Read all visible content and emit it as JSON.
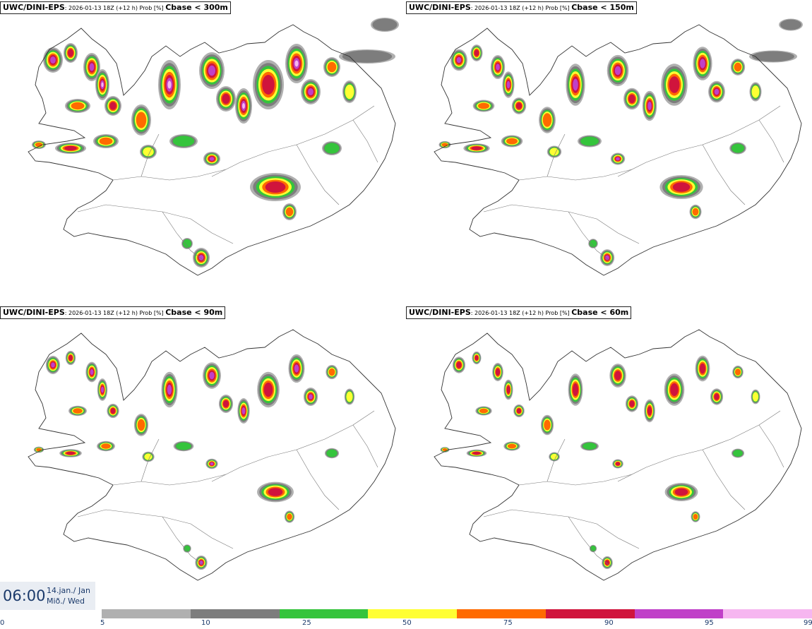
{
  "panels": [
    {
      "model": "UWC/DINI-EPS",
      "meta": ": 2026-01-13 18Z (+12 h) Prob [%] ",
      "threshold": "Cbase < 300m"
    },
    {
      "model": "UWC/DINI-EPS",
      "meta": ": 2026-01-13 18Z (+12 h) Prob [%] ",
      "threshold": "Cbase < 150m"
    },
    {
      "model": "UWC/DINI-EPS",
      "meta": ": 2026-01-13 18Z (+12 h) Prob [%] ",
      "threshold": "Cbase < 90m"
    },
    {
      "model": "UWC/DINI-EPS",
      "meta": ": 2026-01-13 18Z (+12 h) Prob [%] ",
      "threshold": "Cbase < 60m"
    }
  ],
  "time": {
    "clock": "06:00",
    "date_line1": "14.jan./ Jan",
    "date_line2": "Mið./ Wed"
  },
  "legend": {
    "labels": [
      "0",
      "5",
      "10",
      "25",
      "50",
      "75",
      "90",
      "95",
      "99"
    ],
    "colors": [
      "#b0b0b0",
      "#7d7d7d",
      "#35c43c",
      "#ffff33",
      "#ff6a00",
      "#d0143c",
      "#c040c8",
      "#f6b6f0"
    ]
  },
  "palette": {
    "low": "#b0b0b0",
    "mid_grey": "#7d7d7d",
    "green": "#35c43c",
    "yellow": "#ffff33",
    "orange": "#ff6a00",
    "red": "#d0143c",
    "purple": "#c040c8",
    "pink": "#f6b6f0"
  }
}
